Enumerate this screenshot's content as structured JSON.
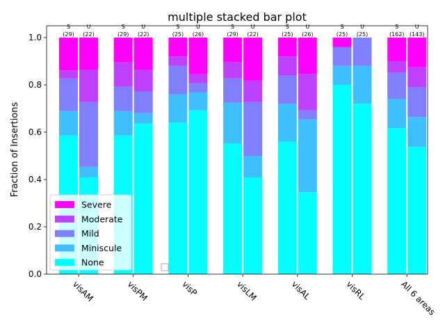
{
  "chart_data": {
    "type": "bar",
    "stacked": true,
    "title": "multiple stacked bar plot",
    "xlabel": "",
    "ylabel": "Fraction of Insertions",
    "ylim": [
      0,
      1.05
    ],
    "yticks": [
      "0.0",
      "0.2",
      "0.4",
      "0.6",
      "0.8",
      "1.0"
    ],
    "categories": [
      "visAM",
      "visPM",
      "visP",
      "visLM",
      "visAL",
      "visRL",
      "All 6 areas"
    ],
    "legend": {
      "placement": "lower-left"
    },
    "series_colors": {
      "None": "#00ffff",
      "Miniscule": "#40bfff",
      "Mild": "#8080ff",
      "Moderate": "#bf40ff",
      "Severe": "#ff00ff"
    },
    "series_order": [
      "None",
      "Miniscule",
      "Mild",
      "Moderate",
      "Severe"
    ],
    "groups": [
      {
        "category": "visAM",
        "bars": [
          {
            "label": "S",
            "count": "(29)",
            "values": [
              0.586,
              0.103,
              0.138,
              0.034,
              0.139
            ]
          },
          {
            "label": "U",
            "count": "(22)",
            "values": [
              0.409,
              0.045,
              0.273,
              0.136,
              0.137
            ]
          }
        ]
      },
      {
        "category": "visPM",
        "bars": [
          {
            "label": "S",
            "count": "(29)",
            "values": [
              0.586,
              0.103,
              0.103,
              0.103,
              0.105
            ]
          },
          {
            "label": "U",
            "count": "(22)",
            "values": [
              0.636,
              0.045,
              0.091,
              0.091,
              0.137
            ]
          }
        ]
      },
      {
        "category": "visP",
        "bars": [
          {
            "label": "S",
            "count": "(25)",
            "values": [
              0.64,
              0.12,
              0.12,
              0.04,
              0.08
            ]
          },
          {
            "label": "U",
            "count": "(26)",
            "values": [
              0.692,
              0.077,
              0.038,
              0.038,
              0.155
            ]
          }
        ]
      },
      {
        "category": "visLM",
        "bars": [
          {
            "label": "S",
            "count": "(29)",
            "values": [
              0.552,
              0.172,
              0.103,
              0.069,
              0.104
            ]
          },
          {
            "label": "U",
            "count": "(22)",
            "values": [
              0.409,
              0.091,
              0.227,
              0.091,
              0.182
            ]
          }
        ]
      },
      {
        "category": "visAL",
        "bars": [
          {
            "label": "S",
            "count": "(25)",
            "values": [
              0.56,
              0.16,
              0.12,
              0.08,
              0.08
            ]
          },
          {
            "label": "U",
            "count": "(26)",
            "values": [
              0.346,
              0.308,
              0.038,
              0.154,
              0.154
            ]
          }
        ]
      },
      {
        "category": "visRL",
        "bars": [
          {
            "label": "S",
            "count": "(25)",
            "values": [
              0.8,
              0.08,
              0.08,
              0.0,
              0.04
            ]
          },
          {
            "label": "U",
            "count": "(25)",
            "values": [
              0.72,
              0.16,
              0.12,
              0.0,
              0.0
            ]
          }
        ]
      },
      {
        "category": "All 6 areas",
        "bars": [
          {
            "label": "S",
            "count": "(162)",
            "values": [
              0.617,
              0.123,
              0.111,
              0.049,
              0.1
            ]
          },
          {
            "label": "U",
            "count": "(143)",
            "values": [
              0.538,
              0.126,
              0.126,
              0.084,
              0.126
            ]
          }
        ]
      }
    ],
    "legend_entries": [
      "Severe",
      "Moderate",
      "Mild",
      "Miniscule",
      "None"
    ],
    "extra_legend_marker": ""
  }
}
